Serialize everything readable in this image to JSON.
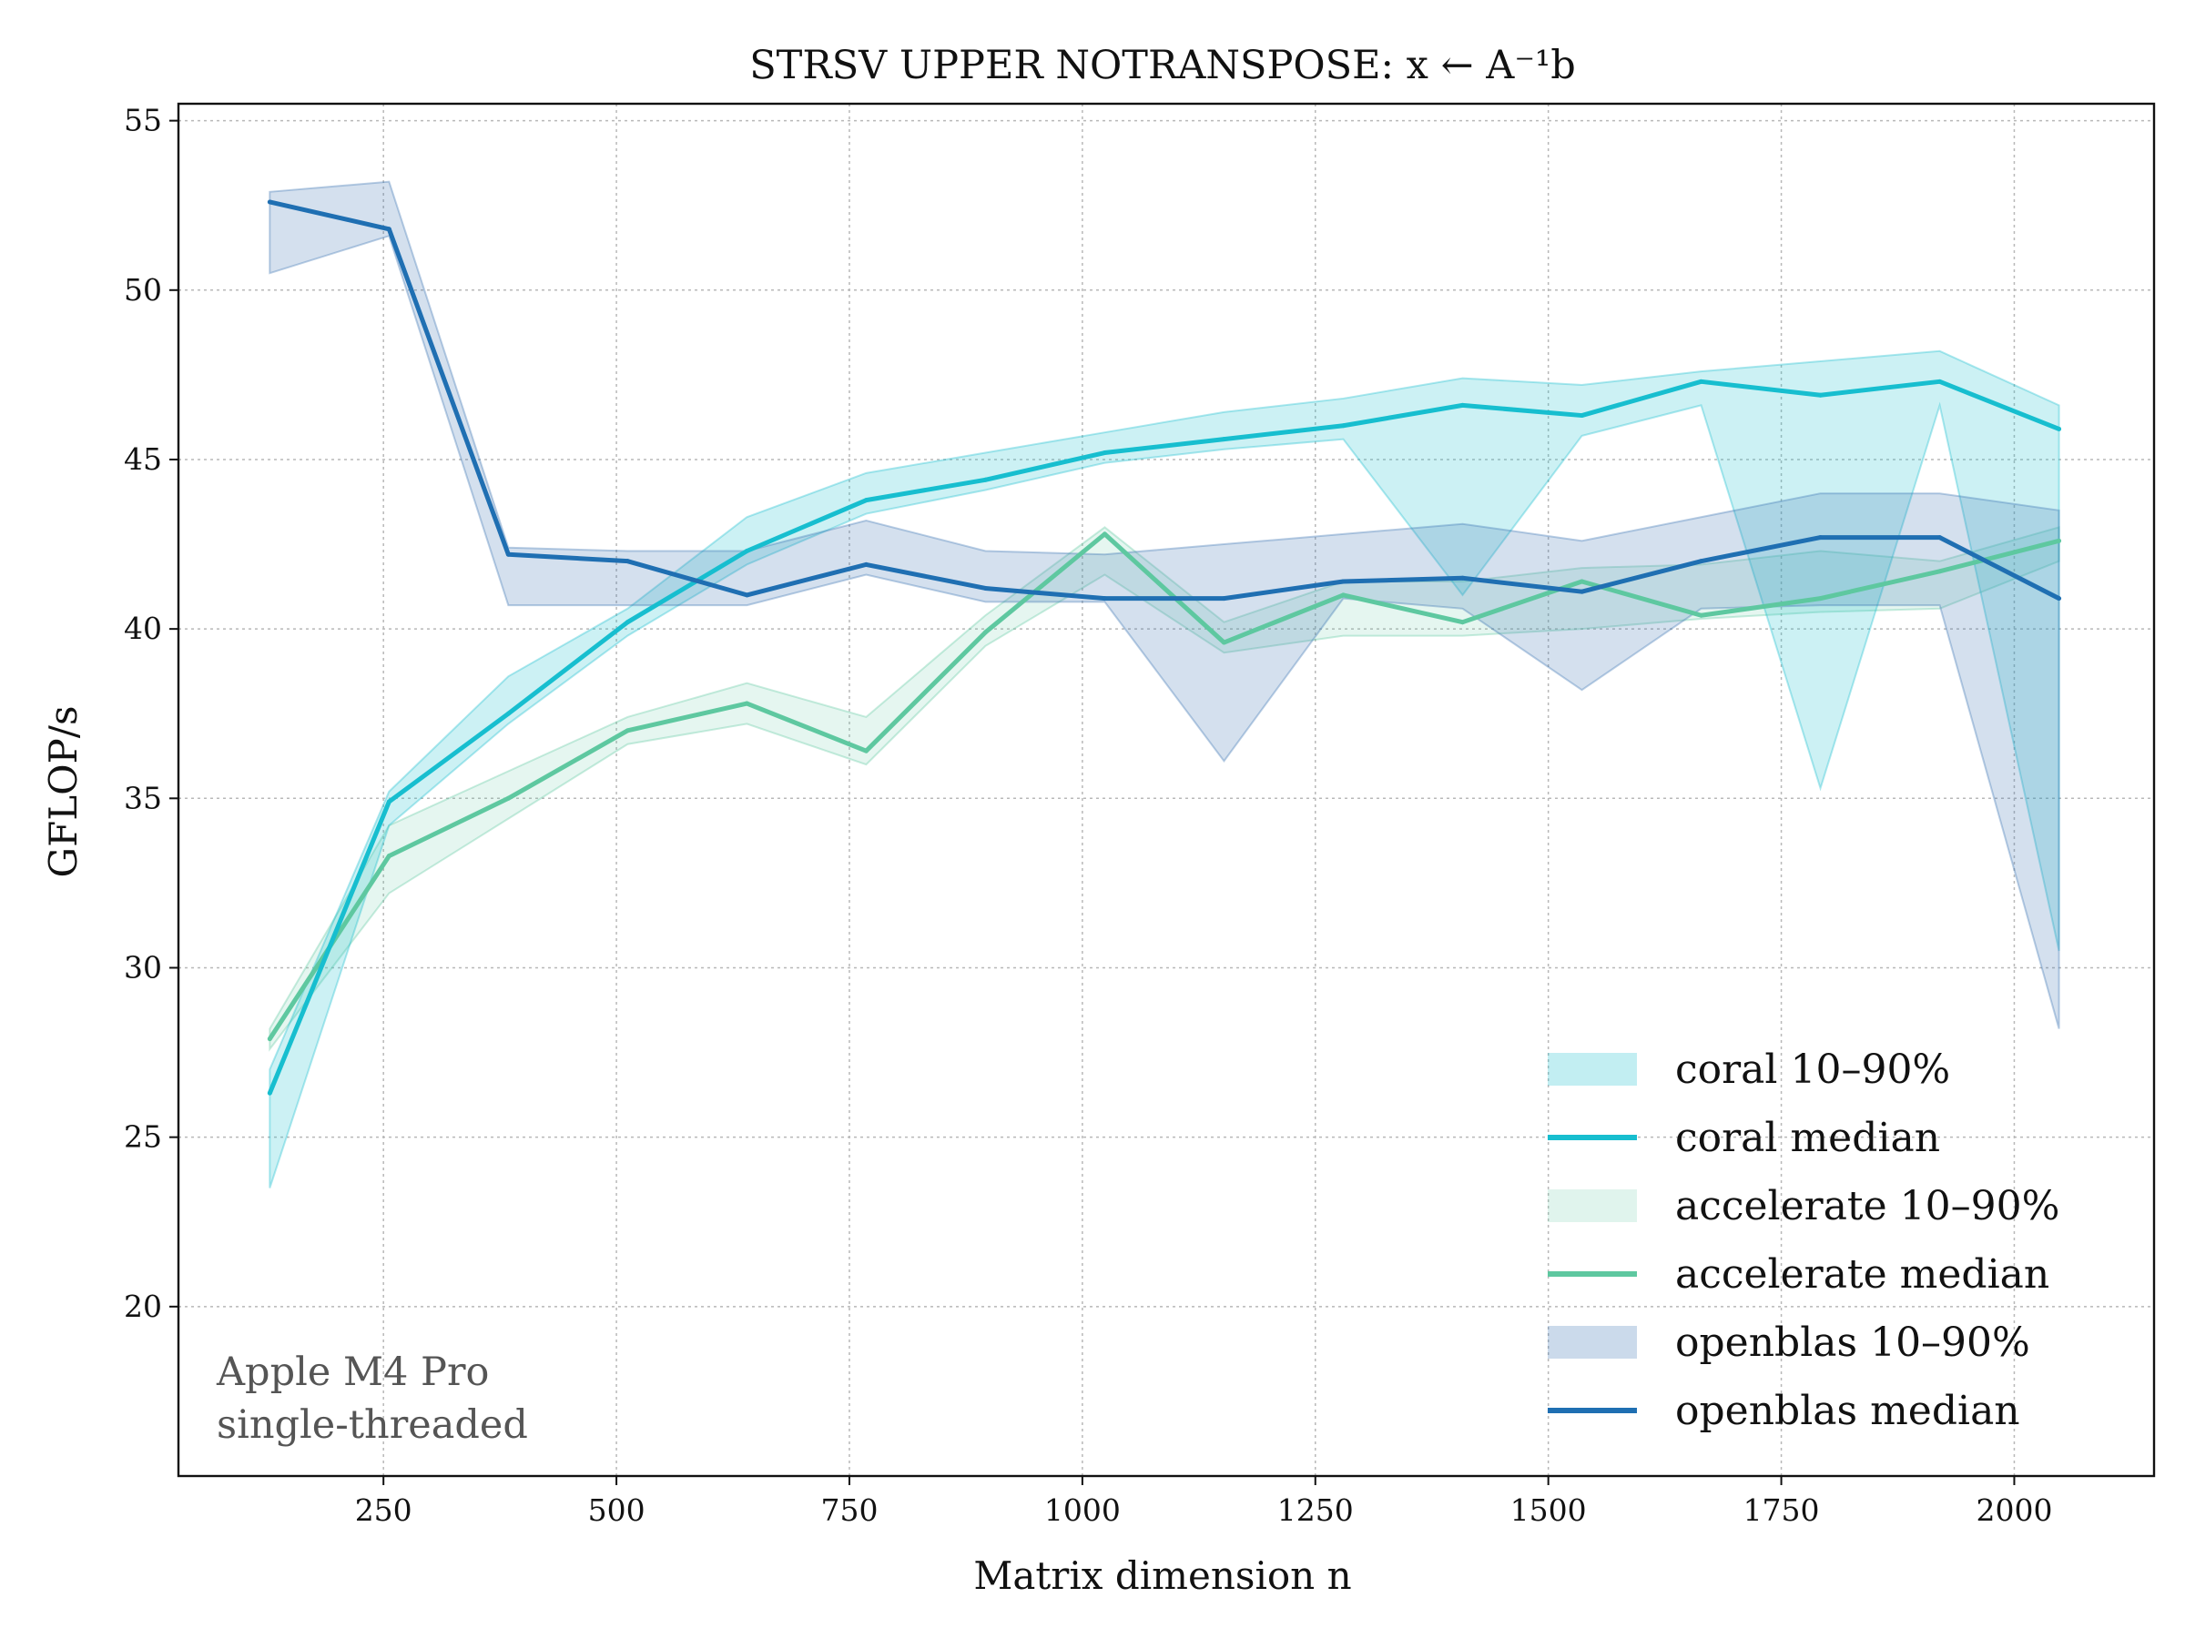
{
  "chart_data": {
    "type": "line",
    "title": "STRSV UPPER NOTRANSPOSE: x ← A⁻¹b",
    "xlabel": "Matrix dimension n",
    "ylabel": "GFLOP/s",
    "xlim": [
      30,
      2150
    ],
    "ylim": [
      15,
      55.5
    ],
    "xticks": [
      250,
      500,
      750,
      1000,
      1250,
      1500,
      1750,
      2000
    ],
    "yticks": [
      20,
      25,
      30,
      35,
      40,
      45,
      50,
      55
    ],
    "grid": true,
    "legend_position": "bottom-right",
    "annotation": [
      "Apple M4 Pro",
      "single-threaded"
    ],
    "x": [
      128,
      256,
      384,
      512,
      640,
      768,
      896,
      1024,
      1152,
      1280,
      1408,
      1536,
      1664,
      1792,
      1920,
      2048
    ],
    "series": [
      {
        "name": "coral",
        "legend_band": "coral 10–90%",
        "legend_median": "coral median",
        "color": "#17becf",
        "band_color": "#17becf",
        "median": [
          26.3,
          34.9,
          37.5,
          40.2,
          42.3,
          43.8,
          44.4,
          45.2,
          45.6,
          46.0,
          46.6,
          46.3,
          47.3,
          46.9,
          47.3,
          45.9
        ],
        "p10": [
          23.5,
          34.2,
          37.2,
          39.8,
          41.9,
          43.4,
          44.1,
          44.9,
          45.3,
          45.6,
          41.0,
          45.7,
          46.6,
          35.3,
          46.6,
          30.5
        ],
        "p90": [
          27.0,
          35.2,
          38.6,
          40.6,
          43.3,
          44.6,
          45.2,
          45.8,
          46.4,
          46.8,
          47.4,
          47.2,
          47.6,
          47.9,
          48.2,
          46.6
        ]
      },
      {
        "name": "accelerate",
        "legend_band": "accelerate 10–90%",
        "legend_median": "accelerate median",
        "color": "#5ec8a0",
        "band_color": "#5ec8a0",
        "median": [
          27.9,
          33.3,
          35.0,
          37.0,
          37.8,
          36.4,
          39.9,
          42.8,
          39.6,
          41.0,
          40.2,
          41.4,
          40.4,
          40.9,
          41.7,
          42.6
        ],
        "p10": [
          27.6,
          32.2,
          34.4,
          36.6,
          37.2,
          36.0,
          39.5,
          41.6,
          39.3,
          39.8,
          39.8,
          40.0,
          40.3,
          40.5,
          40.6,
          42.0
        ],
        "p90": [
          28.2,
          34.2,
          35.8,
          37.4,
          38.4,
          37.4,
          40.4,
          43.0,
          40.2,
          41.4,
          41.4,
          41.8,
          41.9,
          42.3,
          42.0,
          43.0
        ]
      },
      {
        "name": "openblas",
        "legend_band": "openblas 10–90%",
        "legend_median": "openblas median",
        "color": "#1f6fb2",
        "band_color": "#3a72b3",
        "median": [
          52.6,
          51.8,
          42.2,
          42.0,
          41.0,
          41.9,
          41.2,
          40.9,
          40.9,
          41.4,
          41.5,
          41.1,
          42.0,
          42.7,
          42.7,
          40.9
        ],
        "p10": [
          50.5,
          51.6,
          40.7,
          40.7,
          40.7,
          41.6,
          40.8,
          40.8,
          36.1,
          40.9,
          40.6,
          38.2,
          40.6,
          40.7,
          40.7,
          28.2
        ],
        "p90": [
          52.9,
          53.2,
          42.4,
          42.3,
          42.3,
          43.2,
          42.3,
          42.2,
          42.5,
          42.8,
          43.1,
          42.6,
          43.3,
          44.0,
          44.0,
          43.5
        ]
      }
    ]
  }
}
